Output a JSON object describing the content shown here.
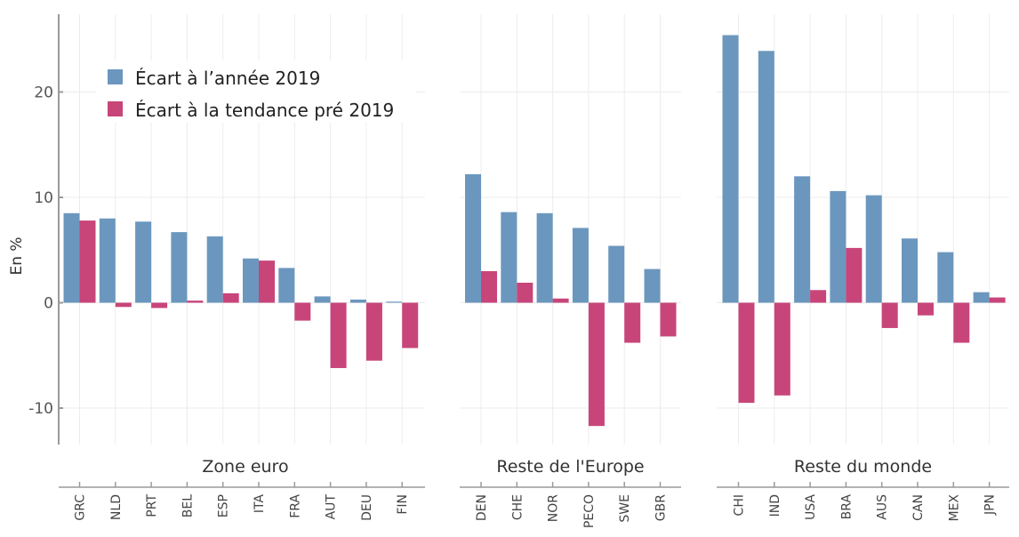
{
  "chart_data": {
    "type": "bar",
    "title": "",
    "ylabel": "En %",
    "xlabel": "",
    "ylim": [
      -13.5,
      27.5
    ],
    "yticks": [
      -10,
      0,
      10,
      20
    ],
    "grid": true,
    "legend_position": "top-left",
    "colors": {
      "ecart_2019": "#6B97BE",
      "ecart_tendance": "#C8457A"
    },
    "series": [
      {
        "key": "ecart_2019",
        "name": "Écart à l’année 2019"
      },
      {
        "key": "ecart_tendance",
        "name": "Écart à la tendance pré 2019"
      }
    ],
    "groups": [
      {
        "label": "Zone euro",
        "categories": [
          "GRC",
          "NLD",
          "PRT",
          "BEL",
          "ESP",
          "ITA",
          "FRA",
          "AUT",
          "DEU",
          "FIN"
        ],
        "ecart_2019": [
          8.5,
          8.0,
          7.7,
          6.7,
          6.3,
          4.2,
          3.3,
          0.6,
          0.3,
          0.1
        ],
        "ecart_tendance": [
          7.8,
          -0.4,
          -0.5,
          0.2,
          0.9,
          4.0,
          -1.7,
          -6.2,
          -5.5,
          -4.3
        ]
      },
      {
        "label": "Reste de l'Europe",
        "categories": [
          "DEN",
          "CHE",
          "NOR",
          "PECO",
          "SWE",
          "GBR"
        ],
        "ecart_2019": [
          12.2,
          8.6,
          8.5,
          7.1,
          5.4,
          3.2
        ],
        "ecart_tendance": [
          3.0,
          1.9,
          0.4,
          -11.7,
          -3.8,
          -3.2
        ]
      },
      {
        "label": "Reste du monde",
        "categories": [
          "CHI",
          "IND",
          "USA",
          "BRA",
          "AUS",
          "CAN",
          "MEX",
          "JPN"
        ],
        "ecart_2019": [
          25.4,
          23.9,
          12.0,
          10.6,
          10.2,
          6.1,
          4.8,
          1.0
        ],
        "ecart_tendance": [
          -9.5,
          -8.8,
          1.2,
          5.2,
          -2.4,
          -1.2,
          -3.8,
          0.5
        ]
      }
    ]
  }
}
